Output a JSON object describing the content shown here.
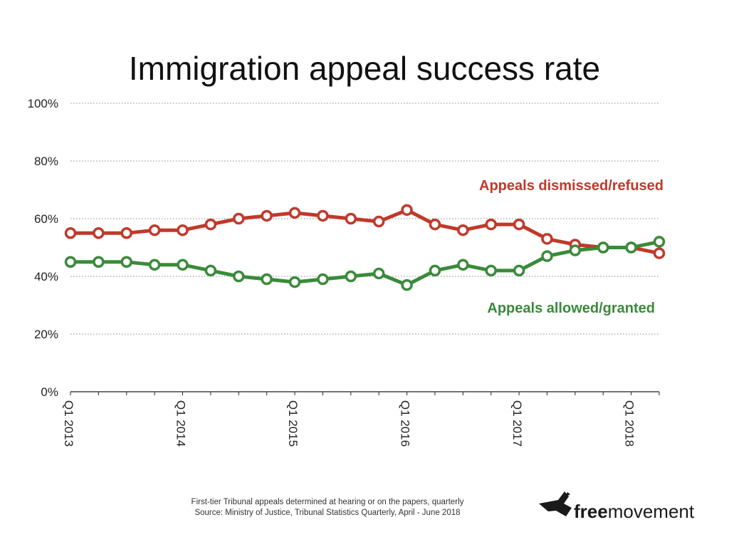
{
  "chart_data": {
    "type": "line",
    "title": "Immigration appeal success rate",
    "xlabel": "",
    "ylabel": "",
    "x": [
      "Q1 2013",
      "Q2 2013",
      "Q3 2013",
      "Q4 2013",
      "Q1 2014",
      "Q2 2014",
      "Q3 2014",
      "Q4 2014",
      "Q1 2015",
      "Q2 2015",
      "Q3 2015",
      "Q4 2015",
      "Q1 2016",
      "Q2 2016",
      "Q3 2016",
      "Q4 2016",
      "Q1 2017",
      "Q2 2017",
      "Q3 2017",
      "Q4 2017",
      "Q1 2018",
      "Q2 2018"
    ],
    "xtick_labels": [
      "Q1 2013",
      "Q1 2014",
      "Q1 2015",
      "Q1 2016",
      "Q1 2017",
      "Q1 2018"
    ],
    "ylim": [
      0,
      100
    ],
    "yticks": [
      0,
      20,
      40,
      60,
      80,
      100
    ],
    "ytick_labels": [
      "0%",
      "20%",
      "40%",
      "60%",
      "80%",
      "100%"
    ],
    "grid": true,
    "series": [
      {
        "name": "Appeals dismissed/refused",
        "color": "#c0392b",
        "values": [
          55,
          55,
          55,
          56,
          56,
          58,
          60,
          61,
          62,
          61,
          60,
          59,
          63,
          58,
          56,
          58,
          58,
          53,
          51,
          50,
          50,
          48
        ]
      },
      {
        "name": "Appeals allowed/granted",
        "color": "#3a8a3a",
        "values": [
          45,
          45,
          45,
          44,
          44,
          42,
          40,
          39,
          38,
          39,
          40,
          41,
          37,
          42,
          44,
          42,
          42,
          47,
          49,
          50,
          50,
          52
        ]
      }
    ]
  },
  "footnote": {
    "line1": "First-tier Tribunal appeals determined at hearing or on the papers, quarterly",
    "line2": "Source: Ministry of Justice, Tribunal Statistics Quarterly, April - June 2018"
  },
  "brand": {
    "bold": "free",
    "regular": "movement",
    "logo_icon": "bird-icon"
  }
}
